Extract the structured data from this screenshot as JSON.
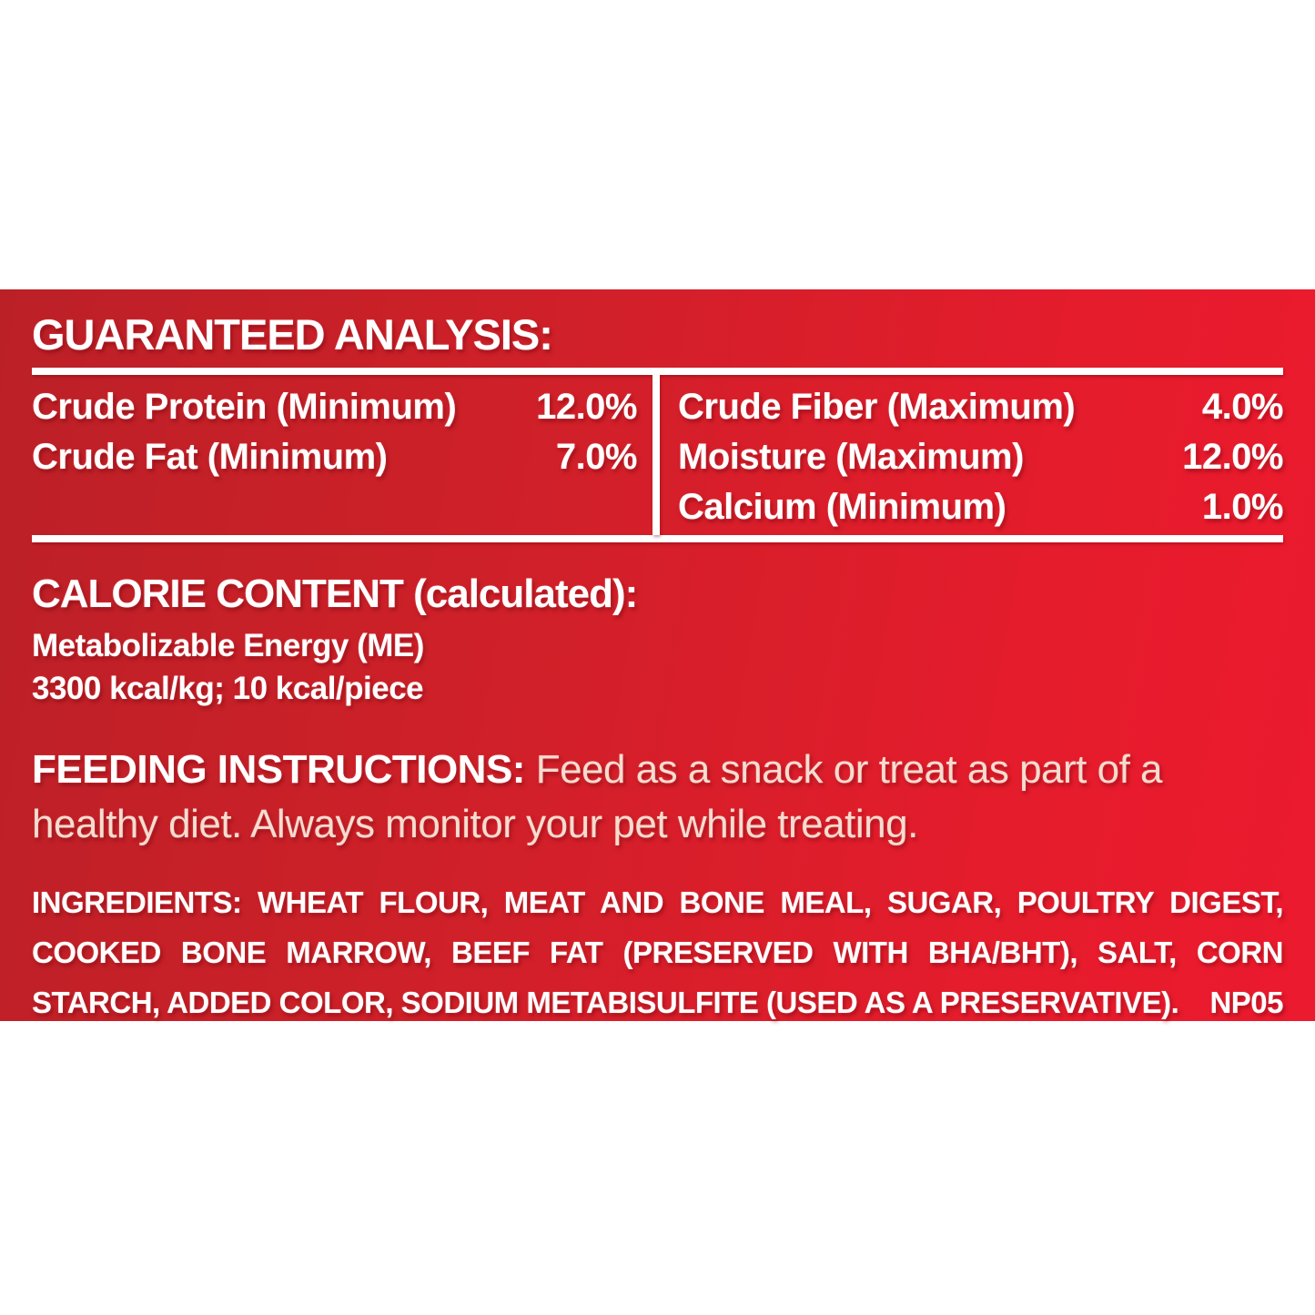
{
  "colors": {
    "label_red_left": "#bc2027",
    "label_red_right": "#ec1a2e",
    "text_white": "#ffffff",
    "text_cream": "#f5dcd0"
  },
  "guaranteed_analysis": {
    "heading": "GUARANTEED ANALYSIS:",
    "left_rows": [
      {
        "name": "Crude Protein (Minimum)",
        "value": "12.0%"
      },
      {
        "name": "Crude Fat (Minimum)",
        "value": "7.0%"
      }
    ],
    "right_rows": [
      {
        "name": "Crude Fiber (Maximum)",
        "value": "4.0%"
      },
      {
        "name": "Moisture (Maximum)",
        "value": "12.0%"
      },
      {
        "name": "Calcium (Minimum)",
        "value": "1.0%"
      }
    ]
  },
  "calorie_content": {
    "heading": "CALORIE CONTENT (calculated):",
    "line1": "Metabolizable Energy (ME)",
    "line2": "3300 kcal/kg; 10 kcal/piece"
  },
  "feeding_instructions": {
    "heading": "FEEDING INSTRUCTIONS:",
    "body": "Feed as a snack or treat as part of a healthy diet. Always monitor your pet while treating."
  },
  "ingredients": {
    "heading": "INGREDIENTS:",
    "body": "WHEAT FLOUR, MEAT AND BONE MEAL, SUGAR, POULTRY DIGEST, COOKED BONE MARROW, BEEF FAT (PRESERVED WITH BHA/BHT), SALT, CORN STARCH, ADDED COLOR, SODIUM METABISULFITE (USED AS A PRESERVATIVE).",
    "code": "NP05"
  }
}
